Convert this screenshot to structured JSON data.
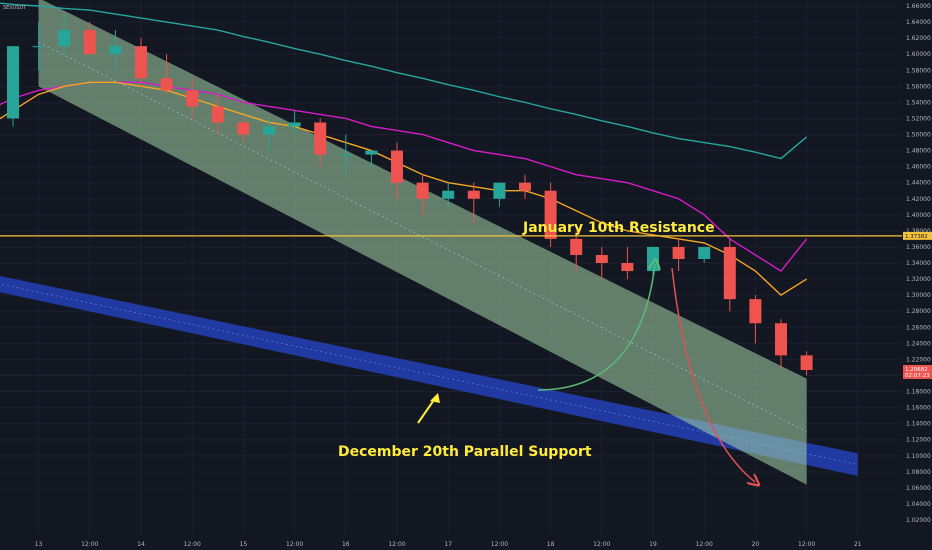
{
  "symbol": "SEI/USDT",
  "chart_data": {
    "type": "candlestick",
    "y_ticks": [
      "1.66000",
      "1.64000",
      "1.62000",
      "1.60000",
      "1.58000",
      "1.56000",
      "1.54000",
      "1.52000",
      "1.50000",
      "1.48000",
      "1.46000",
      "1.44000",
      "1.42000",
      "1.40000",
      "1.38000",
      "1.36000",
      "1.34000",
      "1.32000",
      "1.30000",
      "1.28000",
      "1.26000",
      "1.24000",
      "1.22000",
      "1.20000",
      "1.18000",
      "1.16000",
      "1.14000",
      "1.12000",
      "1.10000",
      "1.08000",
      "1.06000",
      "1.04000",
      "1.02000"
    ],
    "y_tick_values": [
      1.66,
      1.64,
      1.62,
      1.6,
      1.58,
      1.56,
      1.54,
      1.52,
      1.5,
      1.48,
      1.46,
      1.44,
      1.42,
      1.4,
      1.38,
      1.36,
      1.34,
      1.32,
      1.3,
      1.28,
      1.26,
      1.24,
      1.22,
      1.2,
      1.18,
      1.16,
      1.14,
      1.12,
      1.1,
      1.08,
      1.06,
      1.04,
      1.02
    ],
    "ylim": [
      1.005,
      1.674
    ],
    "x_ticks": [
      "12:00",
      "13",
      "12:00",
      "14",
      "12:00",
      "15",
      "12:00",
      "16",
      "12:00",
      "17",
      "12:00",
      "18",
      "12:00",
      "19",
      "12:00",
      "20",
      "12:00",
      "21"
    ],
    "x_tick_steps": [
      -1,
      1,
      3,
      5,
      7,
      9,
      11,
      13,
      15,
      17,
      19,
      21,
      23,
      25,
      27,
      29,
      31,
      33
    ],
    "resistance": {
      "label": "January 10th Resistance",
      "value": 1.3738,
      "tag": "1.37382",
      "color": "#f5c33b"
    },
    "price_tag": {
      "value": 1.2068,
      "line1": "1.20682",
      "line2": "02:07:23",
      "color": "#ef5350"
    },
    "support_label": "December 20th Parallel Support",
    "colors": {
      "up": "#26a69a",
      "down": "#ef5350",
      "ema_short": "#f6a623",
      "ema_mid": "#d81bc8",
      "ema_long": "#26a6a0",
      "channel": "#a5d6a7",
      "band": "#2441b8",
      "arrow_up": "#5cb87a",
      "arrow_down": "#e34f56"
    },
    "candles": [
      {
        "o": 1.53,
        "h": 1.55,
        "l": 1.52,
        "c": 1.52
      },
      {
        "o": 1.52,
        "h": 1.61,
        "l": 1.51,
        "c": 1.61
      },
      {
        "o": 1.61,
        "h": 1.64,
        "l": 1.58,
        "c": 1.61
      },
      {
        "o": 1.61,
        "h": 1.65,
        "l": 1.6,
        "c": 1.63
      },
      {
        "o": 1.63,
        "h": 1.64,
        "l": 1.6,
        "c": 1.6
      },
      {
        "o": 1.6,
        "h": 1.63,
        "l": 1.58,
        "c": 1.61
      },
      {
        "o": 1.61,
        "h": 1.62,
        "l": 1.56,
        "c": 1.57
      },
      {
        "o": 1.57,
        "h": 1.6,
        "l": 1.55,
        "c": 1.555
      },
      {
        "o": 1.555,
        "h": 1.57,
        "l": 1.52,
        "c": 1.535
      },
      {
        "o": 1.535,
        "h": 1.55,
        "l": 1.5,
        "c": 1.515
      },
      {
        "o": 1.515,
        "h": 1.52,
        "l": 1.49,
        "c": 1.5
      },
      {
        "o": 1.5,
        "h": 1.52,
        "l": 1.48,
        "c": 1.51
      },
      {
        "o": 1.51,
        "h": 1.53,
        "l": 1.5,
        "c": 1.515
      },
      {
        "o": 1.515,
        "h": 1.52,
        "l": 1.46,
        "c": 1.475
      },
      {
        "o": 1.475,
        "h": 1.5,
        "l": 1.45,
        "c": 1.475
      },
      {
        "o": 1.475,
        "h": 1.48,
        "l": 1.46,
        "c": 1.48
      },
      {
        "o": 1.48,
        "h": 1.49,
        "l": 1.42,
        "c": 1.44
      },
      {
        "o": 1.44,
        "h": 1.45,
        "l": 1.4,
        "c": 1.42
      },
      {
        "o": 1.42,
        "h": 1.44,
        "l": 1.41,
        "c": 1.43
      },
      {
        "o": 1.43,
        "h": 1.44,
        "l": 1.39,
        "c": 1.42
      },
      {
        "o": 1.42,
        "h": 1.44,
        "l": 1.41,
        "c": 1.44
      },
      {
        "o": 1.44,
        "h": 1.45,
        "l": 1.42,
        "c": 1.43
      },
      {
        "o": 1.43,
        "h": 1.44,
        "l": 1.36,
        "c": 1.37
      },
      {
        "o": 1.37,
        "h": 1.38,
        "l": 1.33,
        "c": 1.35
      },
      {
        "o": 1.35,
        "h": 1.36,
        "l": 1.32,
        "c": 1.34
      },
      {
        "o": 1.34,
        "h": 1.36,
        "l": 1.32,
        "c": 1.33
      },
      {
        "o": 1.33,
        "h": 1.36,
        "l": 1.32,
        "c": 1.36
      },
      {
        "o": 1.36,
        "h": 1.37,
        "l": 1.33,
        "c": 1.345
      },
      {
        "o": 1.345,
        "h": 1.36,
        "l": 1.34,
        "c": 1.36
      },
      {
        "o": 1.36,
        "h": 1.37,
        "l": 1.28,
        "c": 1.295
      },
      {
        "o": 1.295,
        "h": 1.3,
        "l": 1.24,
        "c": 1.265
      },
      {
        "o": 1.265,
        "h": 1.27,
        "l": 1.21,
        "c": 1.225
      },
      {
        "o": 1.225,
        "h": 1.23,
        "l": 1.2,
        "c": 1.2068
      }
    ],
    "ema_short": [
      1.51,
      1.53,
      1.55,
      1.56,
      1.565,
      1.565,
      1.56,
      1.555,
      1.545,
      1.535,
      1.525,
      1.515,
      1.51,
      1.5,
      1.49,
      1.48,
      1.465,
      1.45,
      1.44,
      1.435,
      1.43,
      1.43,
      1.42,
      1.405,
      1.39,
      1.38,
      1.375,
      1.37,
      1.365,
      1.35,
      1.33,
      1.3,
      1.32
    ],
    "ema_mid_steps": [
      0,
      1,
      2,
      3,
      4,
      5,
      6,
      7,
      8,
      9,
      10,
      11,
      12,
      13,
      14,
      15,
      16,
      17,
      18,
      19,
      20,
      21,
      22,
      23,
      24,
      25,
      26,
      27,
      28,
      29,
      30,
      31,
      32
    ],
    "ema_mid": [
      1.53,
      1.545,
      1.555,
      1.56,
      1.565,
      1.565,
      1.565,
      1.56,
      1.555,
      1.55,
      1.54,
      1.535,
      1.53,
      1.525,
      1.52,
      1.51,
      1.505,
      1.5,
      1.49,
      1.48,
      1.475,
      1.47,
      1.46,
      1.45,
      1.445,
      1.44,
      1.43,
      1.42,
      1.4,
      1.37,
      1.35,
      1.33,
      1.37
    ],
    "ema_long": [
      1.665,
      1.662,
      1.66,
      1.657,
      1.655,
      1.65,
      1.645,
      1.64,
      1.635,
      1.63,
      1.622,
      1.615,
      1.607,
      1.6,
      1.592,
      1.585,
      1.577,
      1.57,
      1.562,
      1.555,
      1.547,
      1.54,
      1.532,
      1.525,
      1.517,
      1.51,
      1.502,
      1.495,
      1.49,
      1.485,
      1.478,
      1.47,
      1.497
    ],
    "channel": {
      "upper_start": [
        1,
        1.67
      ],
      "upper_end": [
        31,
        1.196
      ],
      "lower_start": [
        1,
        1.56
      ],
      "lower_end": [
        31,
        1.064
      ]
    },
    "band": {
      "upper_start": [
        -1,
        1.327
      ],
      "upper_end": [
        33,
        1.103
      ],
      "lower_start": [
        -1,
        1.307
      ],
      "lower_end": [
        33,
        1.075
      ]
    }
  }
}
